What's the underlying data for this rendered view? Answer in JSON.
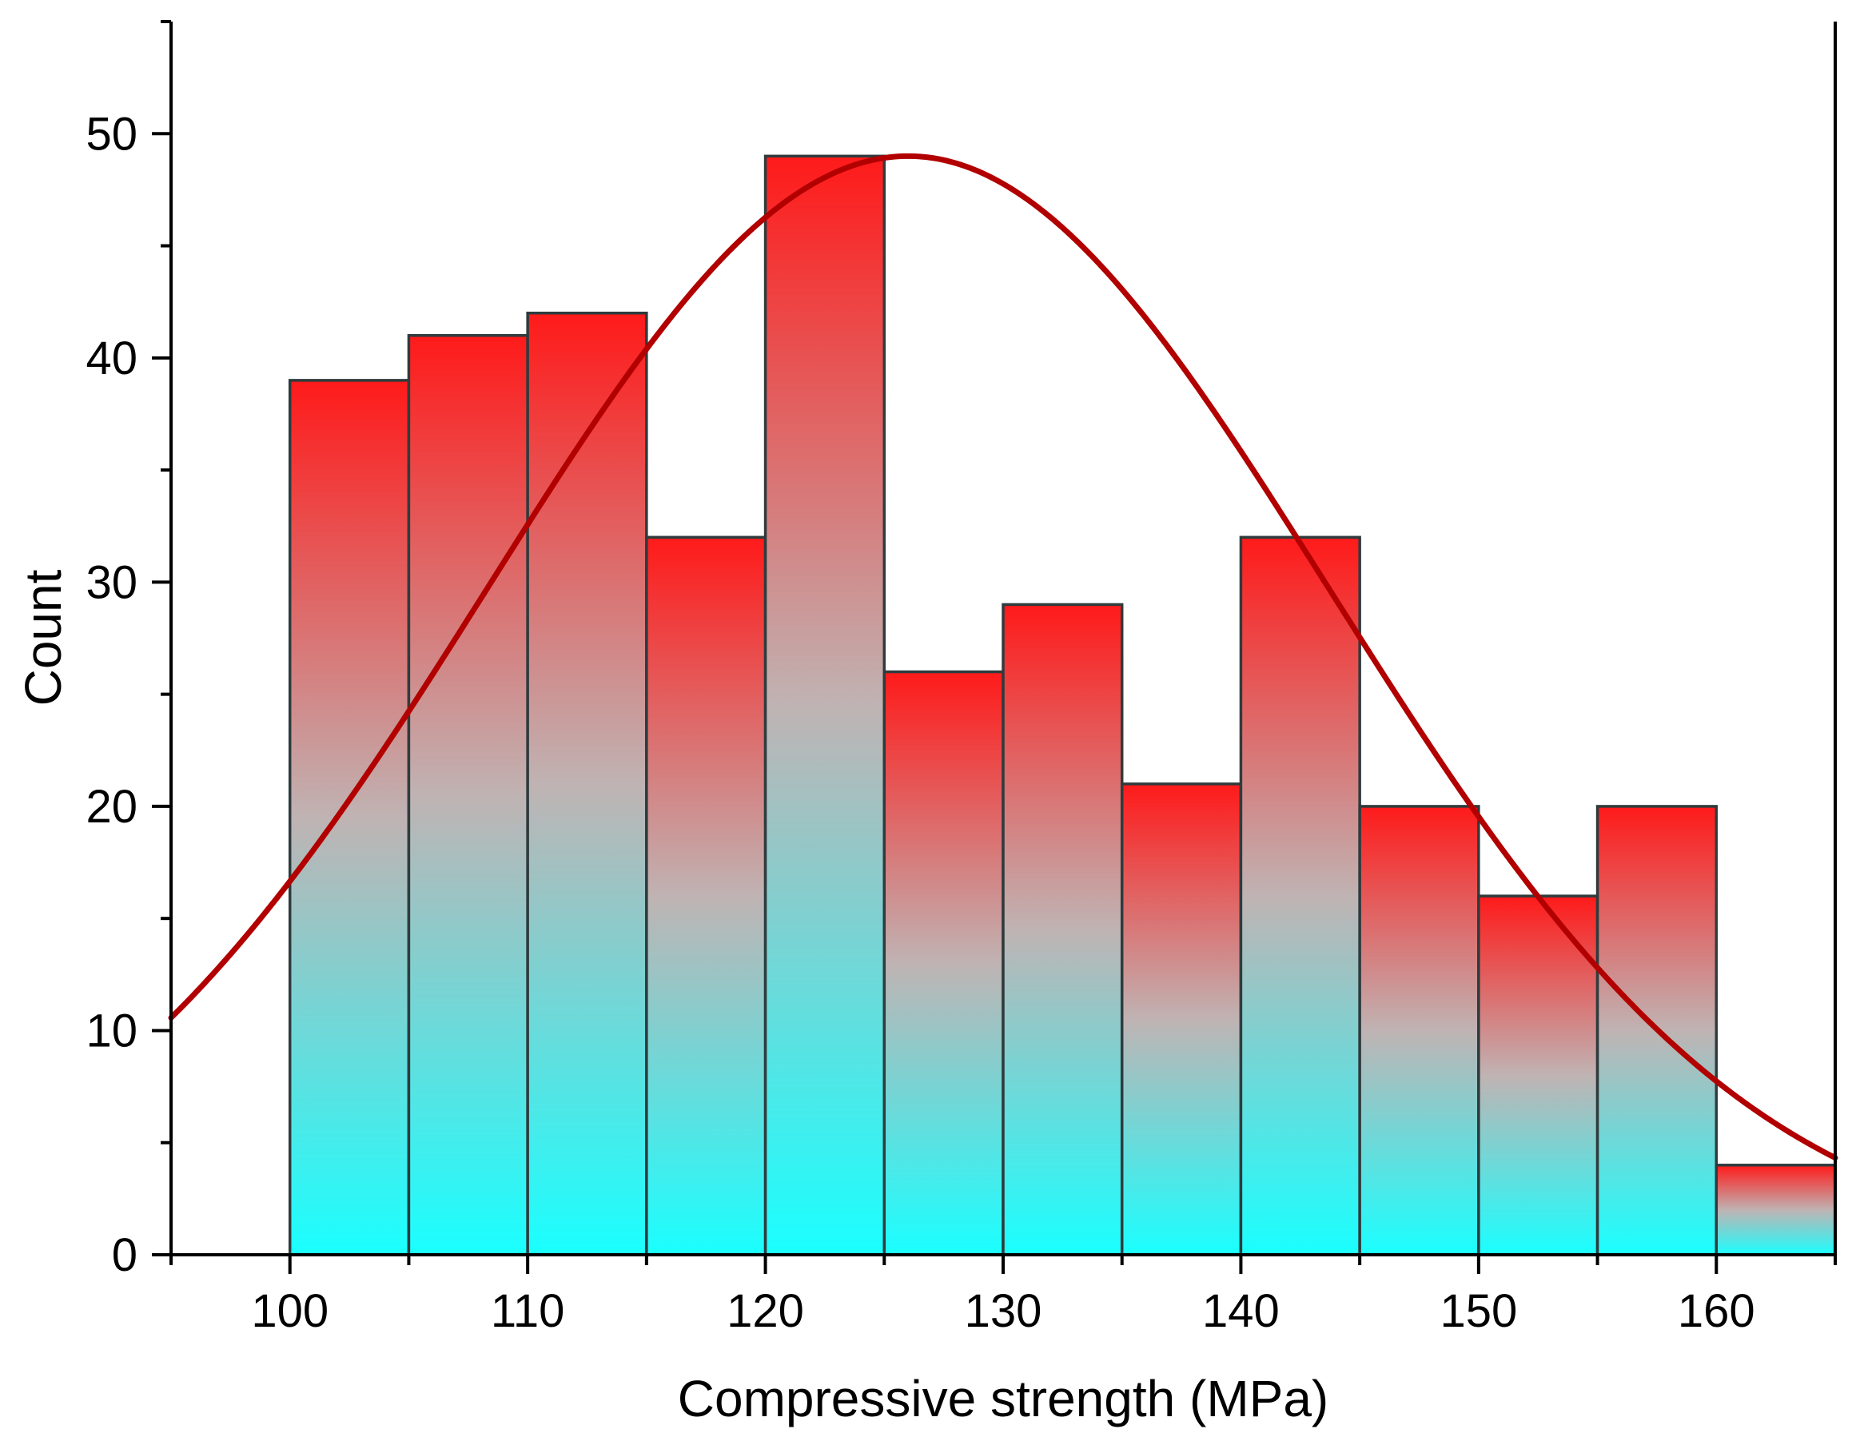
{
  "chart_data": {
    "type": "bar",
    "subtype": "histogram",
    "title": "",
    "xlabel": "Compressive strength (MPa)",
    "ylabel": "Count",
    "xlim": [
      95,
      165
    ],
    "ylim": [
      0,
      55
    ],
    "x_ticks": [
      100,
      110,
      120,
      130,
      140,
      150,
      160
    ],
    "y_ticks": [
      0,
      10,
      20,
      30,
      40,
      50
    ],
    "y_minor_step": 5,
    "x_minor_step": 5,
    "bin_width": 5,
    "bins": [
      {
        "start": 100,
        "end": 105,
        "count": 39
      },
      {
        "start": 105,
        "end": 110,
        "count": 41
      },
      {
        "start": 110,
        "end": 115,
        "count": 42
      },
      {
        "start": 115,
        "end": 120,
        "count": 32
      },
      {
        "start": 120,
        "end": 125,
        "count": 49
      },
      {
        "start": 125,
        "end": 130,
        "count": 26
      },
      {
        "start": 130,
        "end": 135,
        "count": 29
      },
      {
        "start": 135,
        "end": 140,
        "count": 21
      },
      {
        "start": 140,
        "end": 145,
        "count": 32
      },
      {
        "start": 145,
        "end": 150,
        "count": 20
      },
      {
        "start": 150,
        "end": 155,
        "count": 16
      },
      {
        "start": 155,
        "end": 160,
        "count": 20
      },
      {
        "start": 160,
        "end": 165,
        "count": 4
      }
    ],
    "fit_curve": {
      "type": "normal",
      "mean": 126,
      "sigma": 17.7,
      "peak_count": 49,
      "color": "#b20000"
    },
    "colors": {
      "bar_top": "#ff1a1a",
      "bar_middle": "#c0b3b3",
      "bar_bottom": "#1affff",
      "bar_edge": "#2f3b3d",
      "axis": "#000000"
    },
    "grid": false,
    "legend": "none"
  }
}
